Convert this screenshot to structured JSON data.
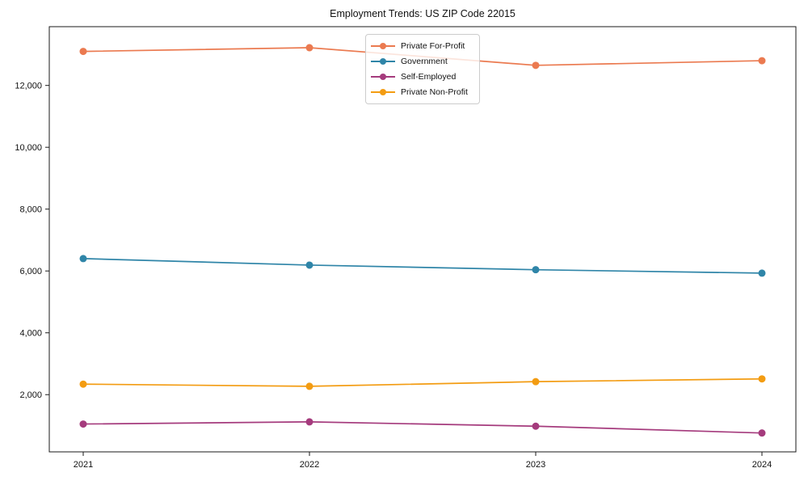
{
  "chart_data": {
    "type": "line",
    "title": "Employment Trends: US ZIP Code 22015",
    "xlabel": "",
    "ylabel": "",
    "categories": [
      "2021",
      "2022",
      "2023",
      "2024"
    ],
    "series": [
      {
        "name": "Private For-Profit",
        "color": "#EB7A50",
        "values": [
          13100,
          13220,
          12650,
          12800
        ]
      },
      {
        "name": "Government",
        "color": "#2F85A8",
        "values": [
          6400,
          6190,
          6040,
          5930
        ]
      },
      {
        "name": "Self-Employed",
        "color": "#A53B7D",
        "values": [
          1050,
          1120,
          980,
          760
        ]
      },
      {
        "name": "Private Non-Profit",
        "color": "#F39C12",
        "values": [
          2340,
          2270,
          2420,
          2510
        ]
      }
    ],
    "ylim": [
      150,
      13900
    ],
    "yticks": [
      {
        "value": 2000,
        "label": "2,000"
      },
      {
        "value": 4000,
        "label": "4,000"
      },
      {
        "value": 6000,
        "label": "6,000"
      },
      {
        "value": 8000,
        "label": "8,000"
      },
      {
        "value": 10000,
        "label": "10,000"
      },
      {
        "value": 12000,
        "label": "12,000"
      }
    ],
    "grid": false,
    "legend_position": "top-center",
    "frame_color": "#1a1a1a",
    "background": "#ffffff"
  }
}
